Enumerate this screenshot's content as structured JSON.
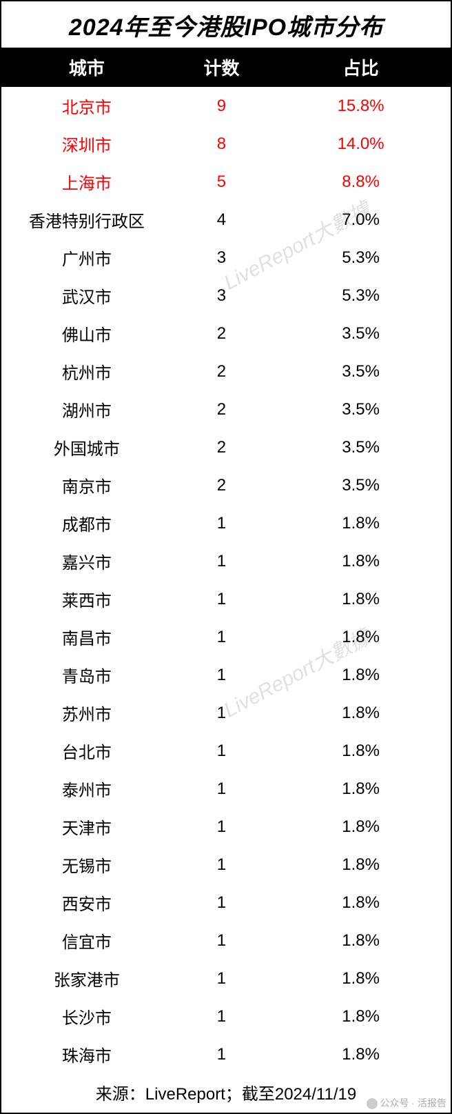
{
  "title": "2024年至今港股IPO城市分布",
  "columns": [
    "城市",
    "计数",
    "占比"
  ],
  "rows": [
    {
      "city": "北京市",
      "count": "9",
      "percent": "15.8%",
      "highlight": true
    },
    {
      "city": "深圳市",
      "count": "8",
      "percent": "14.0%",
      "highlight": true
    },
    {
      "city": "上海市",
      "count": "5",
      "percent": "8.8%",
      "highlight": true
    },
    {
      "city": "香港特别行政区",
      "count": "4",
      "percent": "7.0%",
      "highlight": false
    },
    {
      "city": "广州市",
      "count": "3",
      "percent": "5.3%",
      "highlight": false
    },
    {
      "city": "武汉市",
      "count": "3",
      "percent": "5.3%",
      "highlight": false
    },
    {
      "city": "佛山市",
      "count": "2",
      "percent": "3.5%",
      "highlight": false
    },
    {
      "city": "杭州市",
      "count": "2",
      "percent": "3.5%",
      "highlight": false
    },
    {
      "city": "湖州市",
      "count": "2",
      "percent": "3.5%",
      "highlight": false
    },
    {
      "city": "外国城市",
      "count": "2",
      "percent": "3.5%",
      "highlight": false
    },
    {
      "city": "南京市",
      "count": "2",
      "percent": "3.5%",
      "highlight": false
    },
    {
      "city": "成都市",
      "count": "1",
      "percent": "1.8%",
      "highlight": false
    },
    {
      "city": "嘉兴市",
      "count": "1",
      "percent": "1.8%",
      "highlight": false
    },
    {
      "city": "莱西市",
      "count": "1",
      "percent": "1.8%",
      "highlight": false
    },
    {
      "city": "南昌市",
      "count": "1",
      "percent": "1.8%",
      "highlight": false
    },
    {
      "city": "青岛市",
      "count": "1",
      "percent": "1.8%",
      "highlight": false
    },
    {
      "city": "苏州市",
      "count": "1",
      "percent": "1.8%",
      "highlight": false
    },
    {
      "city": "台北市",
      "count": "1",
      "percent": "1.8%",
      "highlight": false
    },
    {
      "city": "泰州市",
      "count": "1",
      "percent": "1.8%",
      "highlight": false
    },
    {
      "city": "天津市",
      "count": "1",
      "percent": "1.8%",
      "highlight": false
    },
    {
      "city": "无锡市",
      "count": "1",
      "percent": "1.8%",
      "highlight": false
    },
    {
      "city": "西安市",
      "count": "1",
      "percent": "1.8%",
      "highlight": false
    },
    {
      "city": "信宜市",
      "count": "1",
      "percent": "1.8%",
      "highlight": false
    },
    {
      "city": "张家港市",
      "count": "1",
      "percent": "1.8%",
      "highlight": false
    },
    {
      "city": "长沙市",
      "count": "1",
      "percent": "1.8%",
      "highlight": false
    },
    {
      "city": "珠海市",
      "count": "1",
      "percent": "1.8%",
      "highlight": false
    }
  ],
  "source": "来源：LiveReport；截至2024/11/19",
  "watermark_text": "LiveReport大數據",
  "footer_text": "公众号 · 活报告",
  "styling": {
    "highlight_color": "#ff0000",
    "normal_color": "#000000",
    "header_bg": "#000000",
    "header_fg": "#ffffff",
    "border_color": "#000000",
    "title_fontsize": 34,
    "header_fontsize": 26,
    "body_fontsize": 24,
    "watermark_color": "rgba(0,0,0,0.12)",
    "watermark_fontsize": 30,
    "watermark_rotation": -28,
    "col_widths_pct": [
      38,
      22,
      40
    ]
  }
}
